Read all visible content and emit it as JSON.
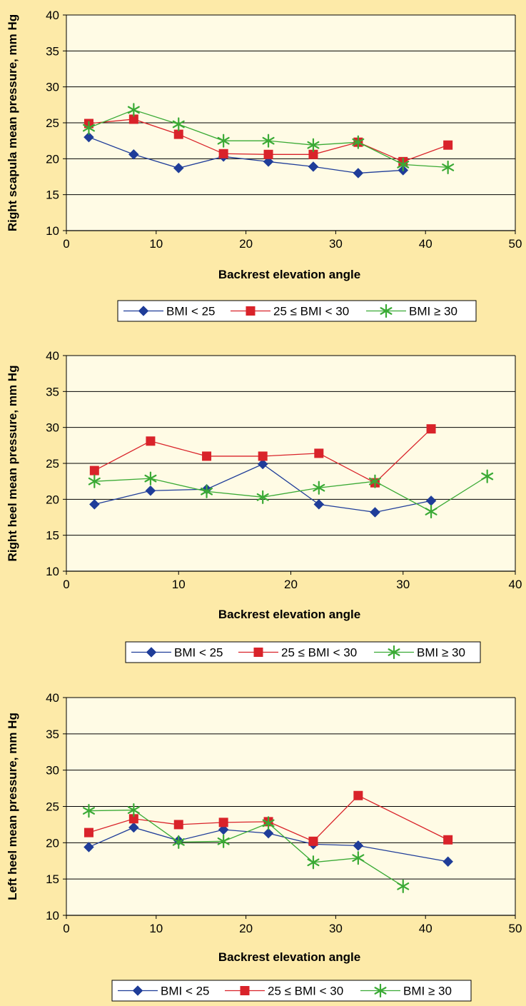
{
  "colors": {
    "page_background": "#fdeaa8",
    "plot_background": "#fffbe5",
    "gridline": "#000000",
    "series_bmi_lt25": "#1f3d99",
    "series_bmi_25_30": "#d9232a",
    "series_bmi_ge30": "#3aaa35"
  },
  "chart_data": [
    {
      "type": "line",
      "title": "",
      "xlabel": "Backrest elevation angle",
      "ylabel": "Right scapula mean pressure, mm Hg",
      "xlim": [
        0,
        50
      ],
      "ylim": [
        10,
        40
      ],
      "x_ticks": [
        "0",
        "10",
        "20",
        "30",
        "40",
        "50"
      ],
      "y_ticks": [
        "10",
        "15",
        "20",
        "25",
        "30",
        "35",
        "40"
      ],
      "grid": "horizontal",
      "legend_position": "bottom",
      "series": [
        {
          "name": "BMI < 25",
          "marker": "diamond-icon",
          "x": [
            2.5,
            7.5,
            12.5,
            17.5,
            22.5,
            27.5,
            32.5,
            37.5
          ],
          "y": [
            23.0,
            20.6,
            18.7,
            20.3,
            19.6,
            18.9,
            18.0,
            18.4
          ]
        },
        {
          "name": "25 ≤ BMI < 30",
          "marker": "square-icon",
          "x": [
            2.5,
            7.5,
            12.5,
            17.5,
            22.5,
            27.5,
            32.5,
            37.5,
            42.5
          ],
          "y": [
            24.9,
            25.5,
            23.4,
            20.7,
            20.6,
            20.6,
            22.3,
            19.6,
            21.9
          ]
        },
        {
          "name": "BMI ≥ 30",
          "marker": "star-icon",
          "x": [
            2.5,
            7.5,
            12.5,
            17.5,
            22.5,
            27.5,
            32.5,
            37.5,
            42.5
          ],
          "y": [
            24.3,
            26.8,
            24.8,
            22.5,
            22.5,
            21.9,
            22.3,
            19.2,
            18.8
          ]
        }
      ]
    },
    {
      "type": "line",
      "title": "",
      "xlabel": "Backrest elevation angle",
      "ylabel": "Right heel mean pressure, mm Hg",
      "xlim": [
        0,
        40
      ],
      "ylim": [
        10,
        40
      ],
      "x_ticks": [
        "0",
        "10",
        "20",
        "30",
        "40"
      ],
      "y_ticks": [
        "10",
        "15",
        "20",
        "25",
        "30",
        "35",
        "40"
      ],
      "grid": "horizontal",
      "legend_position": "bottom",
      "series": [
        {
          "name": "BMI < 25",
          "marker": "diamond-icon",
          "x": [
            2.5,
            7.5,
            12.5,
            17.5,
            22.5,
            27.5,
            32.5
          ],
          "y": [
            19.3,
            21.2,
            21.4,
            24.9,
            19.3,
            18.2,
            19.8
          ]
        },
        {
          "name": "25 ≤ BMI < 30",
          "marker": "square-icon",
          "x": [
            2.5,
            7.5,
            12.5,
            17.5,
            22.5,
            27.5,
            32.5
          ],
          "y": [
            24.0,
            28.1,
            26.0,
            26.0,
            26.4,
            22.3,
            29.8
          ]
        },
        {
          "name": "BMI ≥ 30",
          "marker": "star-icon",
          "x": [
            2.5,
            7.5,
            12.5,
            17.5,
            22.5,
            27.5,
            32.5,
            37.5
          ],
          "y": [
            22.5,
            22.9,
            21.1,
            20.3,
            21.6,
            22.5,
            18.3,
            23.2
          ]
        }
      ]
    },
    {
      "type": "line",
      "title": "",
      "xlabel": "Backrest elevation angle",
      "ylabel": "Left heel mean pressure, mm Hg",
      "xlim": [
        0,
        50
      ],
      "ylim": [
        10,
        40
      ],
      "x_ticks": [
        "0",
        "10",
        "20",
        "30",
        "40",
        "50"
      ],
      "y_ticks": [
        "10",
        "15",
        "20",
        "25",
        "30",
        "35",
        "40"
      ],
      "grid": "horizontal",
      "legend_position": "bottom",
      "series": [
        {
          "name": "BMI < 25",
          "marker": "diamond-icon",
          "x": [
            2.5,
            7.5,
            12.5,
            17.5,
            22.5,
            27.5,
            32.5,
            42.5
          ],
          "y": [
            19.4,
            22.1,
            20.3,
            21.8,
            21.3,
            19.8,
            19.6,
            17.4
          ]
        },
        {
          "name": "25 ≤ BMI < 30",
          "marker": "square-icon",
          "x": [
            2.5,
            7.5,
            12.5,
            17.5,
            22.5,
            27.5,
            32.5,
            42.5
          ],
          "y": [
            21.4,
            23.3,
            22.5,
            22.8,
            22.9,
            20.2,
            26.5,
            20.4
          ]
        },
        {
          "name": "BMI ≥ 30",
          "marker": "star-icon",
          "x": [
            2.5,
            7.5,
            12.5,
            17.5,
            22.5,
            27.5,
            32.5,
            37.5
          ],
          "y": [
            24.4,
            24.5,
            20.1,
            20.2,
            22.7,
            17.3,
            17.9,
            14.0
          ]
        }
      ]
    }
  ]
}
